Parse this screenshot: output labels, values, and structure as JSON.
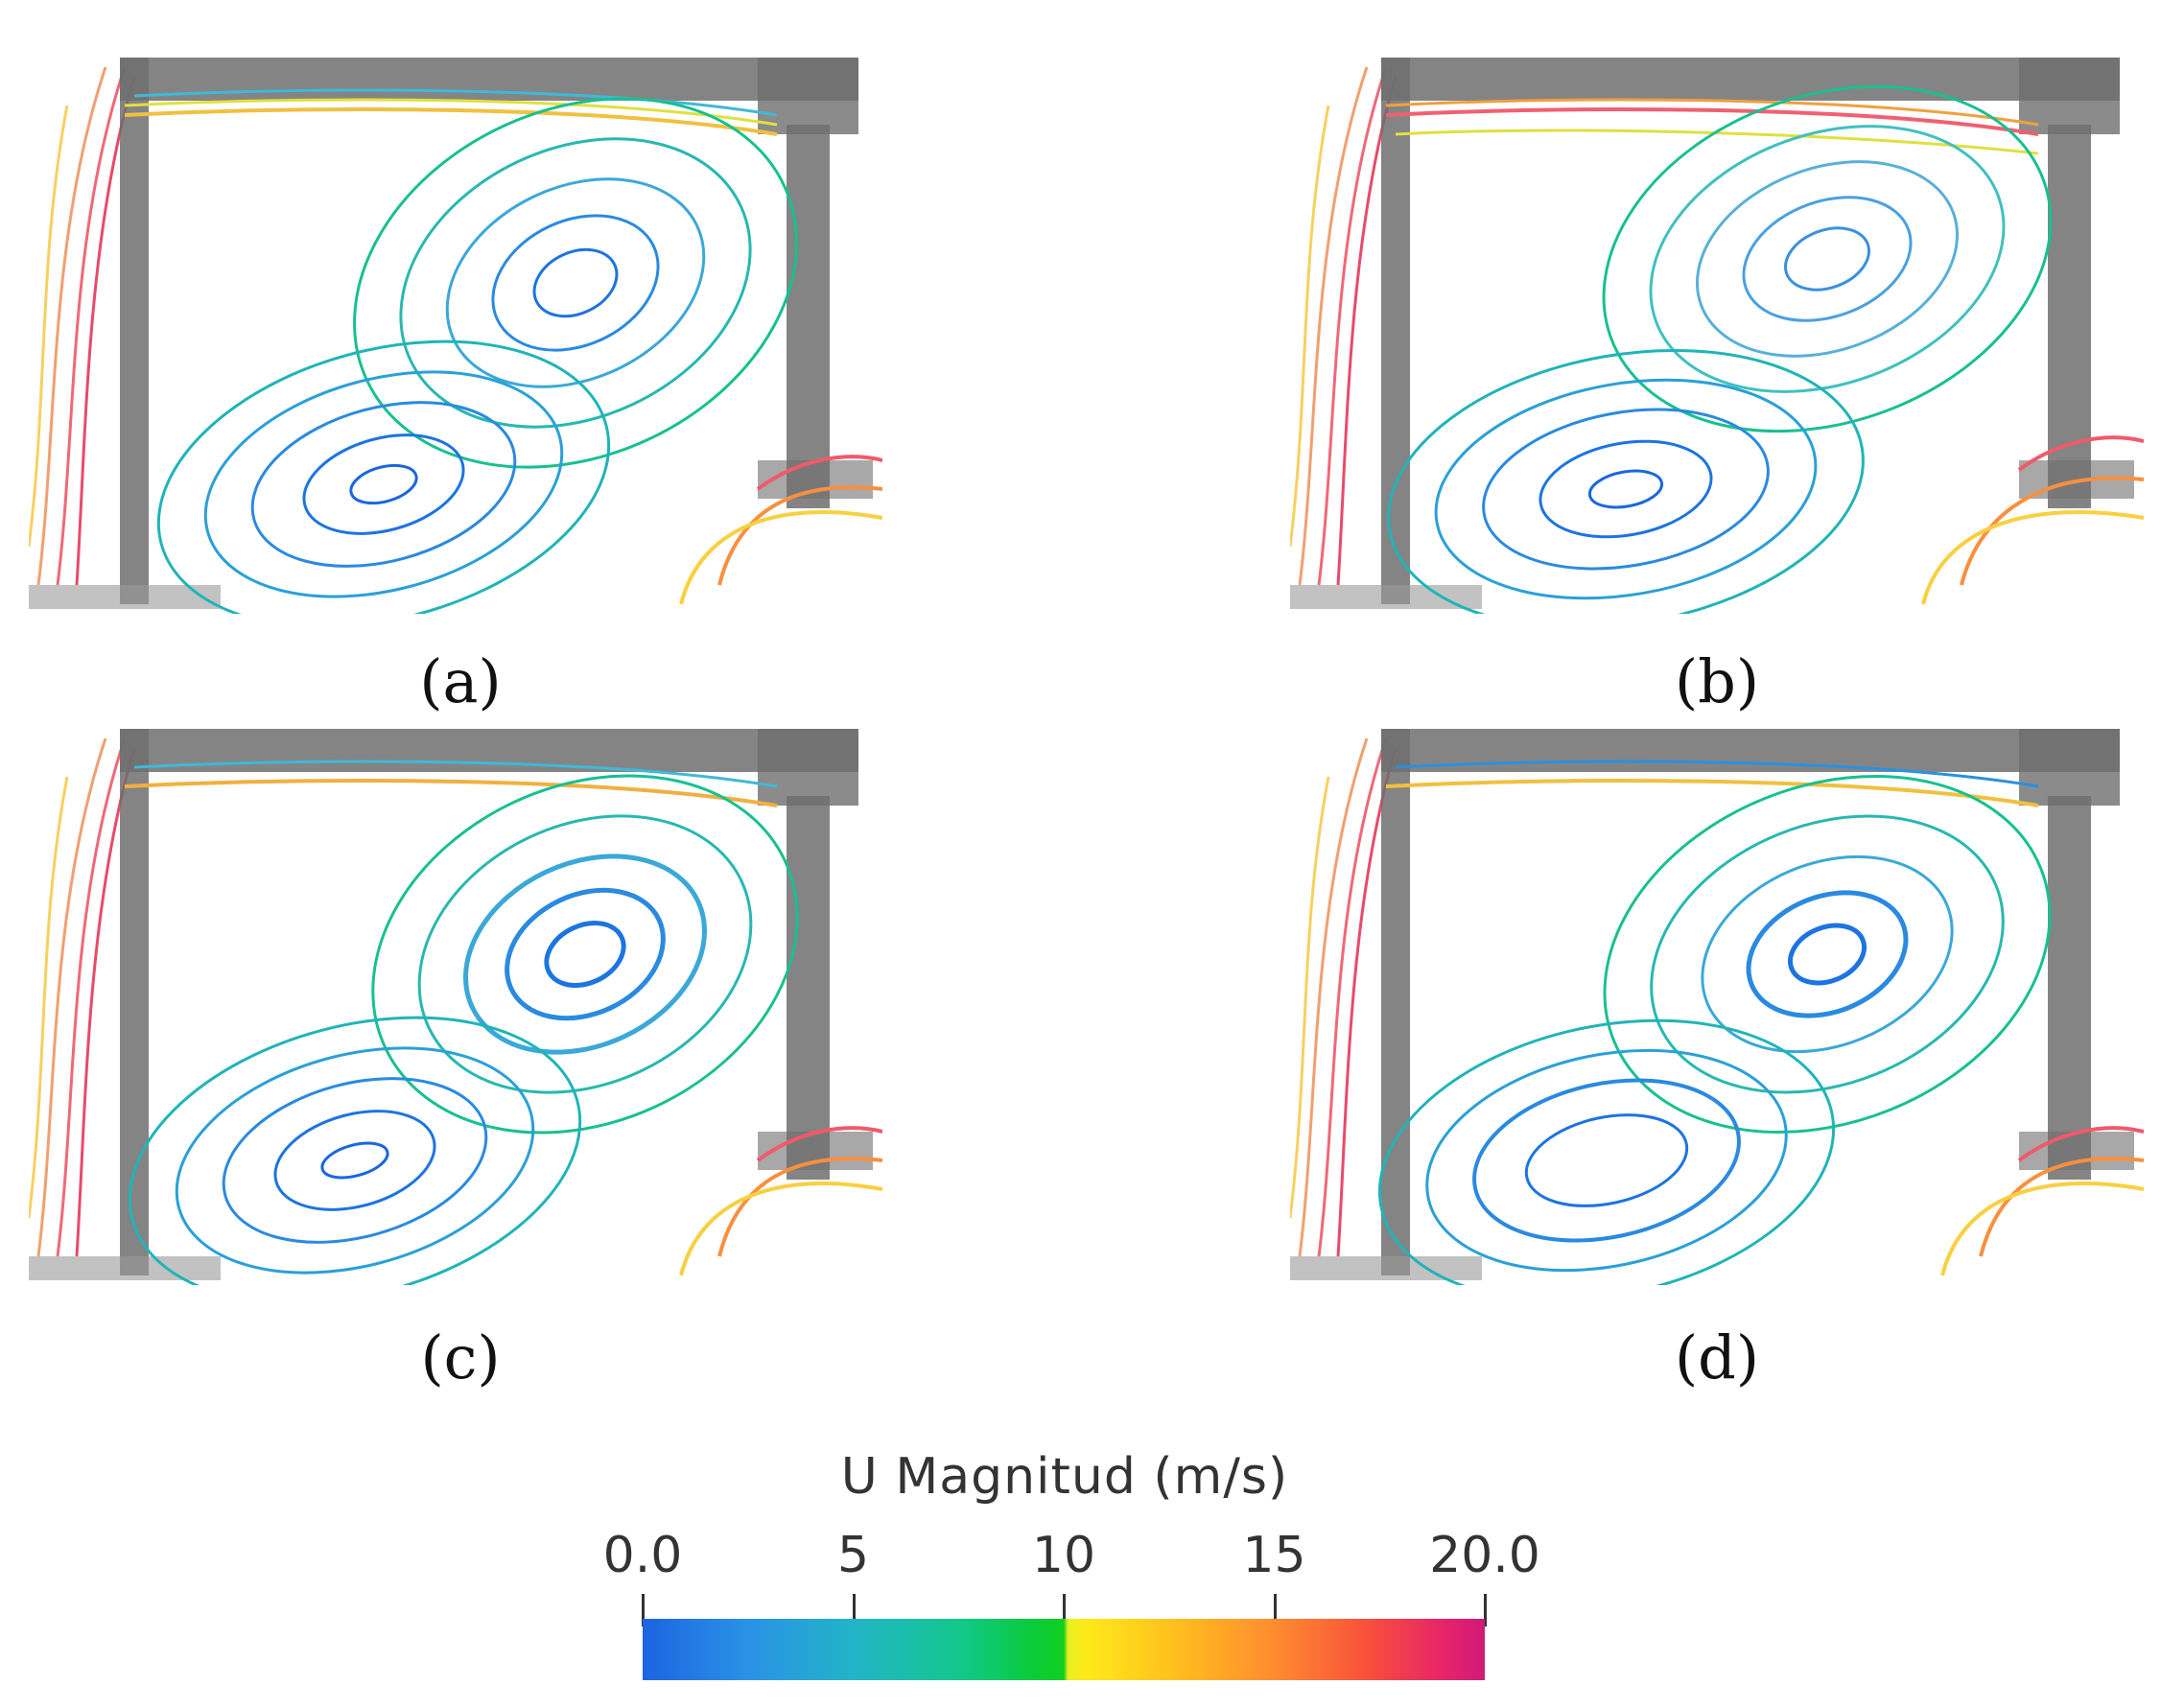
{
  "figure": {
    "panels": [
      {
        "id": "a",
        "caption": "(a)"
      },
      {
        "id": "b",
        "caption": "(b)"
      },
      {
        "id": "c",
        "caption": "(c)"
      },
      {
        "id": "d",
        "caption": "(d)"
      }
    ]
  },
  "colorbar": {
    "title": "U Magnitud (m/s)",
    "min": 0.0,
    "max": 20.0,
    "ticks": [
      {
        "value": 0,
        "label": "0.0"
      },
      {
        "value": 5,
        "label": "5"
      },
      {
        "value": 10,
        "label": "10"
      },
      {
        "value": 15,
        "label": "15"
      },
      {
        "value": 20,
        "label": "20.0"
      }
    ],
    "colors": [
      "#1c64e0",
      "#22b4c8",
      "#0acb3c",
      "#ffe81a",
      "#ff8c30",
      "#e8246a",
      "#d01a78"
    ]
  }
}
